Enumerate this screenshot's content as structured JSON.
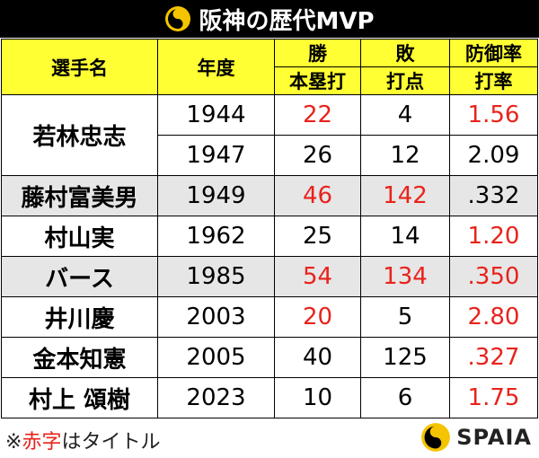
{
  "header": {
    "title": "阪神の歴代MVP"
  },
  "table": {
    "columns": [
      {
        "label": "選手名"
      },
      {
        "label": "年度"
      },
      {
        "top": "勝",
        "bottom": "本塁打"
      },
      {
        "top": "敗",
        "bottom": "打点"
      },
      {
        "top": "防御率",
        "bottom": "打率"
      }
    ],
    "rows": [
      {
        "name": "若林忠志",
        "shaded": false,
        "seasons": [
          {
            "year": "1944",
            "cells": [
              {
                "text": "22",
                "red": true
              },
              {
                "text": "4",
                "red": false
              },
              {
                "text": "1.56",
                "red": true
              }
            ]
          },
          {
            "year": "1947",
            "cells": [
              {
                "text": "26",
                "red": false
              },
              {
                "text": "12",
                "red": false
              },
              {
                "text": "2.09",
                "red": false
              }
            ]
          }
        ]
      },
      {
        "name": "藤村富美男",
        "shaded": true,
        "seasons": [
          {
            "year": "1949",
            "cells": [
              {
                "text": "46",
                "red": true
              },
              {
                "text": "142",
                "red": true
              },
              {
                "text": ".332",
                "red": false
              }
            ]
          }
        ]
      },
      {
        "name": "村山実",
        "shaded": false,
        "seasons": [
          {
            "year": "1962",
            "cells": [
              {
                "text": "25",
                "red": false
              },
              {
                "text": "14",
                "red": false
              },
              {
                "text": "1.20",
                "red": true
              }
            ]
          }
        ]
      },
      {
        "name": "バース",
        "shaded": true,
        "seasons": [
          {
            "year": "1985",
            "cells": [
              {
                "text": "54",
                "red": true
              },
              {
                "text": "134",
                "red": true
              },
              {
                "text": ".350",
                "red": true
              }
            ]
          }
        ]
      },
      {
        "name": "井川慶",
        "shaded": false,
        "seasons": [
          {
            "year": "2003",
            "cells": [
              {
                "text": "20",
                "red": true
              },
              {
                "text": "5",
                "red": false
              },
              {
                "text": "2.80",
                "red": true
              }
            ]
          }
        ]
      },
      {
        "name": "金本知憲",
        "shaded": false,
        "seasons": [
          {
            "year": "2005",
            "cells": [
              {
                "text": "40",
                "red": false
              },
              {
                "text": "125",
                "red": false
              },
              {
                "text": ".327",
                "red": true
              }
            ]
          }
        ]
      },
      {
        "name": "村上 頌樹",
        "shaded": false,
        "seasons": [
          {
            "year": "2023",
            "cells": [
              {
                "text": "10",
                "red": false
              },
              {
                "text": "6",
                "red": false
              },
              {
                "text": "1.75",
                "red": true
              }
            ]
          }
        ]
      }
    ]
  },
  "footer": {
    "note": [
      {
        "text": "※",
        "red": false
      },
      {
        "text": "赤字",
        "red": true
      },
      {
        "text": "はタイトル",
        "red": false
      }
    ],
    "brand": "SPAIA"
  }
}
